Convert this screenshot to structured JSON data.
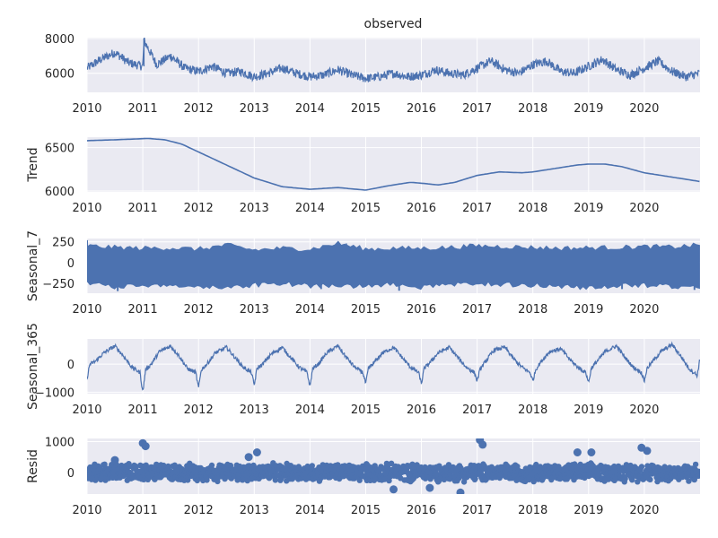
{
  "colors": {
    "line": "#4c72b0",
    "panel_bg": "#eaeaf2",
    "grid": "#ffffff",
    "text": "#262626"
  },
  "chart_data": {
    "type": "line",
    "figure_title": "observed",
    "x_range": [
      "2010-01-01",
      "2020-12-31"
    ],
    "x_ticks": [
      "2010",
      "2011",
      "2012",
      "2013",
      "2014",
      "2015",
      "2016",
      "2017",
      "2018",
      "2019",
      "2020"
    ],
    "grid": true,
    "panels": [
      {
        "key": "observed",
        "ylabel": "",
        "style": "line",
        "ylim": [
          4900,
          8050
        ],
        "yticks": [
          6000,
          8000
        ],
        "ytick_labels": [
          "6000",
          "8000"
        ],
        "x": [
          2010.0,
          2010.25,
          2010.5,
          2010.75,
          2011.0,
          2011.02,
          2011.25,
          2011.5,
          2011.75,
          2012.0,
          2012.25,
          2012.5,
          2012.75,
          2013.0,
          2013.25,
          2013.5,
          2013.75,
          2014.0,
          2014.25,
          2014.5,
          2014.75,
          2015.0,
          2015.25,
          2015.5,
          2015.75,
          2016.0,
          2016.25,
          2016.5,
          2016.75,
          2017.0,
          2017.25,
          2017.5,
          2017.75,
          2018.0,
          2018.25,
          2018.5,
          2018.75,
          2019.0,
          2019.25,
          2019.5,
          2019.75,
          2020.0,
          2020.25,
          2020.5,
          2020.75,
          2020.99
        ],
        "y": [
          6300,
          6800,
          7200,
          6600,
          6400,
          7900,
          6500,
          7000,
          6300,
          6100,
          6400,
          6000,
          6100,
          5800,
          6000,
          6300,
          6000,
          5800,
          5900,
          6200,
          5900,
          5700,
          5800,
          6000,
          5800,
          5900,
          6200,
          6000,
          5900,
          6300,
          6700,
          6200,
          6000,
          6500,
          6700,
          6100,
          6000,
          6400,
          6800,
          6200,
          5900,
          6300,
          6700,
          6100,
          5800,
          6000
        ],
        "noise": 260
      },
      {
        "key": "trend",
        "ylabel": "Trend",
        "style": "line",
        "ylim": [
          5990,
          6620
        ],
        "yticks": [
          6000,
          6500
        ],
        "ytick_labels": [
          "6000",
          "6500"
        ],
        "x": [
          2010.0,
          2010.5,
          2010.9,
          2011.1,
          2011.4,
          2011.7,
          2012.0,
          2012.5,
          2013.0,
          2013.5,
          2014.0,
          2014.5,
          2015.0,
          2015.4,
          2015.8,
          2016.0,
          2016.3,
          2016.6,
          2017.0,
          2017.4,
          2017.8,
          2018.0,
          2018.4,
          2018.8,
          2019.0,
          2019.3,
          2019.6,
          2020.0,
          2020.4,
          2020.8,
          2020.99
        ],
        "y": [
          6580,
          6590,
          6600,
          6605,
          6590,
          6540,
          6450,
          6300,
          6150,
          6050,
          6020,
          6040,
          6010,
          6060,
          6100,
          6090,
          6070,
          6100,
          6180,
          6220,
          6210,
          6220,
          6260,
          6300,
          6310,
          6310,
          6280,
          6210,
          6170,
          6130,
          6110
        ],
        "noise": 0
      },
      {
        "key": "seasonal_7",
        "ylabel": "Seasonal_7",
        "style": "band",
        "ylim": [
          -370,
          290
        ],
        "yticks": [
          -250,
          0,
          250
        ],
        "ytick_labels": [
          "−250",
          "0",
          "250"
        ],
        "x": [
          2010.0,
          2010.5,
          2011.0,
          2011.5,
          2012.0,
          2012.5,
          2013.0,
          2013.5,
          2014.0,
          2014.5,
          2015.0,
          2015.5,
          2016.0,
          2016.5,
          2017.0,
          2017.5,
          2018.0,
          2018.5,
          2019.0,
          2019.5,
          2020.0,
          2020.5,
          2020.99
        ],
        "upper": [
          200,
          180,
          170,
          175,
          160,
          210,
          150,
          170,
          160,
          230,
          160,
          170,
          170,
          180,
          200,
          190,
          180,
          170,
          175,
          180,
          190,
          185,
          210
        ],
        "lower": [
          -250,
          -300,
          -270,
          -260,
          -300,
          -290,
          -270,
          -250,
          -280,
          -270,
          -290,
          -260,
          -300,
          -270,
          -250,
          -260,
          -270,
          -290,
          -300,
          -280,
          -270,
          -290,
          -300
        ],
        "spikes_up": [
          [
            2010.0,
            270
          ],
          [
            2014.65,
            230
          ],
          [
            2012.6,
            220
          ]
        ],
        "spikes_down": [
          [
            2010.55,
            -345
          ],
          [
            2014.2,
            -320
          ],
          [
            2015.6,
            -340
          ],
          [
            2020.9,
            -330
          ],
          [
            2019.6,
            -320
          ]
        ]
      },
      {
        "key": "seasonal_365",
        "ylabel": "Seasonal_365",
        "style": "line",
        "ylim": [
          -1050,
          900
        ],
        "yticks": [
          -1000,
          0
        ],
        "ytick_labels": [
          "−1000",
          "0"
        ],
        "x": [
          2010.0,
          2010.05,
          2010.15,
          2010.3,
          2010.5,
          2010.65,
          2010.8,
          2010.95,
          2011.0,
          2011.05,
          2011.15,
          2011.3,
          2011.5,
          2011.65,
          2011.8,
          2011.95,
          2012.0,
          2012.05,
          2012.15,
          2012.3,
          2012.5,
          2012.65,
          2012.8,
          2012.95,
          2013.0,
          2013.05,
          2013.15,
          2013.3,
          2013.5,
          2013.65,
          2013.8,
          2013.95,
          2014.0,
          2014.05,
          2014.15,
          2014.3,
          2014.5,
          2014.65,
          2014.8,
          2014.95,
          2015.0,
          2015.05,
          2015.15,
          2015.3,
          2015.5,
          2015.65,
          2015.8,
          2015.95,
          2016.0,
          2016.05,
          2016.15,
          2016.3,
          2016.5,
          2016.65,
          2016.8,
          2016.95,
          2017.0,
          2017.05,
          2017.15,
          2017.3,
          2017.5,
          2017.65,
          2017.8,
          2017.95,
          2018.0,
          2018.05,
          2018.15,
          2018.3,
          2018.5,
          2018.65,
          2018.8,
          2018.95,
          2019.0,
          2019.05,
          2019.15,
          2019.3,
          2019.5,
          2019.65,
          2019.8,
          2019.95,
          2020.0,
          2020.05,
          2020.15,
          2020.3,
          2020.5,
          2020.65,
          2020.8,
          2020.95,
          2020.99
        ],
        "y": [
          -500,
          0,
          100,
          400,
          650,
          300,
          -100,
          -300,
          -1000,
          -200,
          0,
          450,
          650,
          300,
          -150,
          -300,
          -850,
          -200,
          0,
          400,
          600,
          250,
          -100,
          -300,
          -750,
          -150,
          0,
          350,
          600,
          250,
          -100,
          -300,
          -800,
          -150,
          0,
          400,
          650,
          250,
          -100,
          -300,
          -700,
          -150,
          50,
          400,
          600,
          250,
          -100,
          -300,
          -700,
          -150,
          50,
          400,
          600,
          250,
          -100,
          -300,
          -600,
          -200,
          100,
          500,
          600,
          200,
          -100,
          -300,
          -600,
          -200,
          100,
          450,
          550,
          200,
          -100,
          -300,
          -650,
          -150,
          100,
          450,
          650,
          250,
          -100,
          -300,
          -600,
          -150,
          100,
          450,
          700,
          300,
          -150,
          -400,
          100
        ],
        "noise": 70
      },
      {
        "key": "resid",
        "ylabel": "Resid",
        "style": "resid",
        "ylim": [
          -700,
          1100
        ],
        "yticks": [
          0,
          1000
        ],
        "ytick_labels": [
          "0",
          "1000"
        ],
        "outliers": [
          [
            2011.0,
            950
          ],
          [
            2011.05,
            850
          ],
          [
            2017.05,
            1050
          ],
          [
            2017.1,
            900
          ],
          [
            2018.8,
            650
          ],
          [
            2019.05,
            650
          ],
          [
            2019.95,
            800
          ],
          [
            2020.05,
            700
          ],
          [
            2013.05,
            650
          ],
          [
            2015.5,
            -550
          ],
          [
            2016.7,
            -650
          ],
          [
            2010.5,
            400
          ],
          [
            2012.9,
            500
          ],
          [
            2016.15,
            -500
          ]
        ]
      }
    ]
  }
}
